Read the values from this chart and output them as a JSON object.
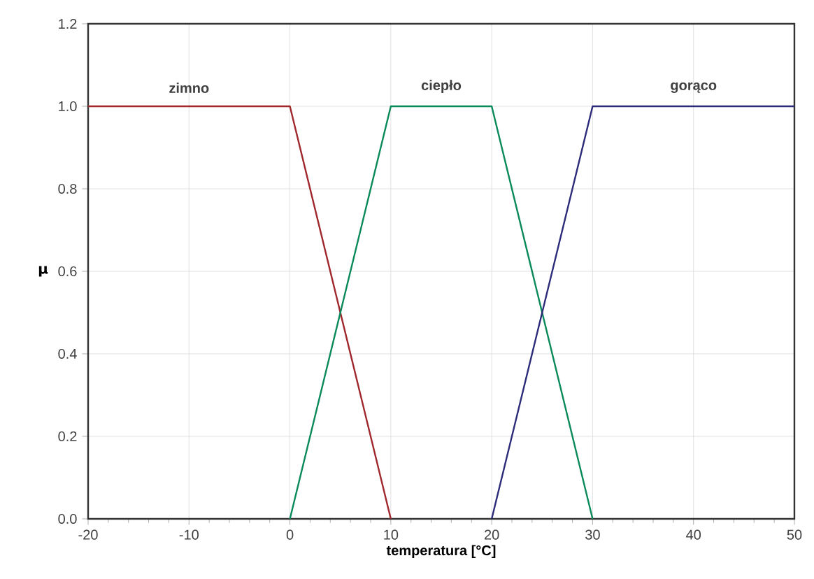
{
  "chart_data": {
    "type": "line",
    "xlabel": "temperatura [°C]",
    "ylabel": "μ",
    "xlim": [
      -20,
      50
    ],
    "ylim": [
      0,
      1.2
    ],
    "xticks": [
      -20,
      -10,
      0,
      10,
      20,
      30,
      40,
      50
    ],
    "yticks": [
      {
        "value": 0,
        "label": "0.0"
      },
      {
        "value": 0.2,
        "label": "0.2"
      },
      {
        "value": 0.4,
        "label": "0.4"
      },
      {
        "value": 0.6,
        "label": "0.6"
      },
      {
        "value": 0.8,
        "label": "0.8"
      },
      {
        "value": 1,
        "label": "1.0"
      },
      {
        "value": 1.2,
        "label": "1.2"
      }
    ],
    "grid": true,
    "legend": false,
    "marker": "none",
    "line_style": "solid",
    "series": [
      {
        "name": "zimno",
        "color": "#a0282d",
        "x": [
          -20,
          0,
          10
        ],
        "values": [
          1,
          1,
          0
        ]
      },
      {
        "name": "ciepło",
        "color": "#0a8a5a",
        "x": [
          0,
          10,
          20,
          30
        ],
        "values": [
          0,
          1,
          1,
          0
        ]
      },
      {
        "name": "gorąco",
        "color": "#2c2c7a",
        "x": [
          20,
          30,
          50
        ],
        "values": [
          0,
          1,
          1
        ]
      }
    ]
  }
}
